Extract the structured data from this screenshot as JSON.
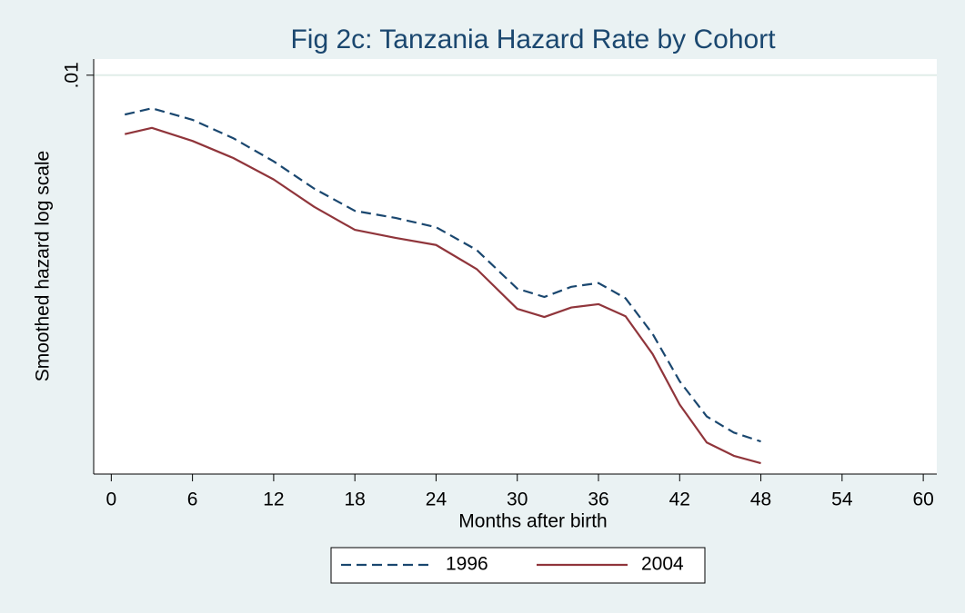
{
  "chart_data": {
    "type": "line",
    "title": "Fig 2c: Tanzania Hazard Rate by Cohort",
    "xlabel": "Months after birth",
    "ylabel": "Smoothed hazard log scale",
    "x": [
      1,
      3,
      6,
      9,
      12,
      15,
      18,
      21,
      24,
      27,
      30,
      32,
      34,
      36,
      38,
      40,
      42,
      44,
      46,
      48
    ],
    "series": [
      {
        "name": "1996",
        "color": "#1a476f",
        "dash": true,
        "values": [
          0.00888,
          0.00905,
          0.00874,
          0.00827,
          0.00771,
          0.0071,
          0.00664,
          0.0065,
          0.00632,
          0.0059,
          0.00525,
          0.00512,
          0.00528,
          0.00534,
          0.0051,
          0.00458,
          0.00397,
          0.00357,
          0.0034,
          0.00331
        ]
      },
      {
        "name": "2004",
        "color": "#90353b",
        "dash": false,
        "values": [
          0.00837,
          0.00853,
          0.0082,
          0.00779,
          0.0073,
          0.00672,
          0.00627,
          0.00612,
          0.00599,
          0.00557,
          0.00494,
          0.00482,
          0.00496,
          0.00501,
          0.00483,
          0.00431,
          0.0037,
          0.0033,
          0.00317,
          0.0031
        ]
      }
    ],
    "xlim": [
      -1.3,
      61
    ],
    "xticks": [
      0,
      6,
      12,
      18,
      24,
      30,
      36,
      42,
      48,
      54,
      60
    ],
    "ylim": [
      0.003,
      0.0105
    ],
    "yticks": [
      {
        "value": 0.01,
        "label": ".01"
      }
    ],
    "log_y": true,
    "grid": true,
    "legend": "bottom"
  }
}
